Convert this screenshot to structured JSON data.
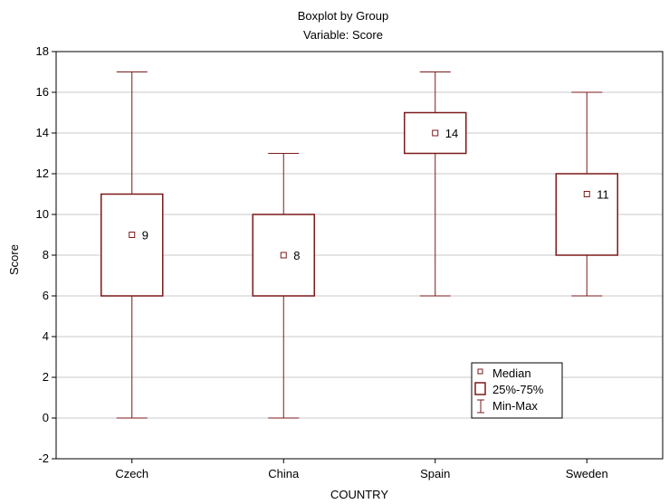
{
  "chart_data": {
    "type": "boxplot",
    "title": "Boxplot by Group",
    "subtitle": "Variable: Score",
    "xlabel": "COUNTRY",
    "ylabel": "Score",
    "ylim": [
      -2,
      18
    ],
    "yticks": [
      -2,
      0,
      2,
      4,
      6,
      8,
      10,
      12,
      14,
      16,
      18
    ],
    "grid": "horizontal",
    "categories": [
      "Czech",
      "China",
      "Spain",
      "Sweden"
    ],
    "boxes": [
      {
        "category": "Czech",
        "min": 0,
        "q1": 6,
        "median": 9,
        "q3": 11,
        "max": 17,
        "label": "9"
      },
      {
        "category": "China",
        "min": 0,
        "q1": 6,
        "median": 8,
        "q3": 10,
        "max": 13,
        "label": "8"
      },
      {
        "category": "Spain",
        "min": 6,
        "q1": 13,
        "median": 14,
        "q3": 15,
        "max": 17,
        "label": "14"
      },
      {
        "category": "Sweden",
        "min": 6,
        "q1": 8,
        "median": 11,
        "q3": 12,
        "max": 16,
        "label": "11"
      }
    ],
    "legend": {
      "position": "bottom-right",
      "entries": [
        "Median",
        "25%-75%",
        "Min-Max"
      ]
    },
    "colors": {
      "box": "#7b1a1a",
      "grid": "#c8c8c8",
      "axis": "#000000"
    }
  }
}
